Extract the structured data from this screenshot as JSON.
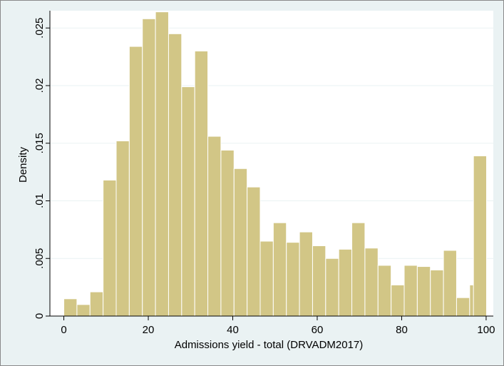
{
  "chart_data": {
    "type": "bar",
    "subtype": "histogram",
    "title": "",
    "xlabel": "Admissions yield - total (DRVADM2017)",
    "ylabel": "Density",
    "xlim": [
      -3.3,
      101.7
    ],
    "ylim": [
      0,
      0.0265
    ],
    "x_ticks": [
      0,
      20,
      40,
      60,
      80,
      100
    ],
    "x_tick_labels": [
      "0",
      "20",
      "40",
      "60",
      "80",
      "100"
    ],
    "y_ticks": [
      0,
      0.005,
      0.01,
      0.015,
      0.02,
      0.025
    ],
    "y_tick_labels": [
      "0",
      ".005",
      ".01",
      ".015",
      ".02",
      ".025"
    ],
    "grid": "horizontal",
    "legend": "none",
    "bin_width": 3.1,
    "bin_starts": [
      0,
      3.1,
      6.2,
      9.3,
      12.4,
      15.5,
      18.6,
      21.7,
      24.8,
      27.9,
      31.0,
      34.1,
      37.2,
      40.3,
      43.4,
      46.5,
      49.6,
      52.7,
      55.8,
      58.9,
      62.0,
      65.1,
      68.2,
      71.3,
      74.4,
      77.5,
      80.6,
      83.7,
      86.8,
      89.9,
      93.0,
      96.1,
      97.0
    ],
    "values": [
      0.0015,
      0.001,
      0.0021,
      0.0118,
      0.0152,
      0.0234,
      0.0258,
      0.0264,
      0.0245,
      0.0199,
      0.023,
      0.0156,
      0.0144,
      0.0128,
      0.0112,
      0.0065,
      0.0081,
      0.0064,
      0.0073,
      0.0061,
      0.005,
      0.0058,
      0.0081,
      0.0059,
      0.0044,
      0.0027,
      0.0044,
      0.0043,
      0.004,
      0.0057,
      0.0016,
      0.0027,
      0.0139
    ],
    "colors": {
      "bar_fill": "#d2c686",
      "bar_stroke": "#ffffff",
      "plot_bg": "#ffffff",
      "outer_bg": "#eaf2f3",
      "grid": "#eaf2f3"
    }
  }
}
